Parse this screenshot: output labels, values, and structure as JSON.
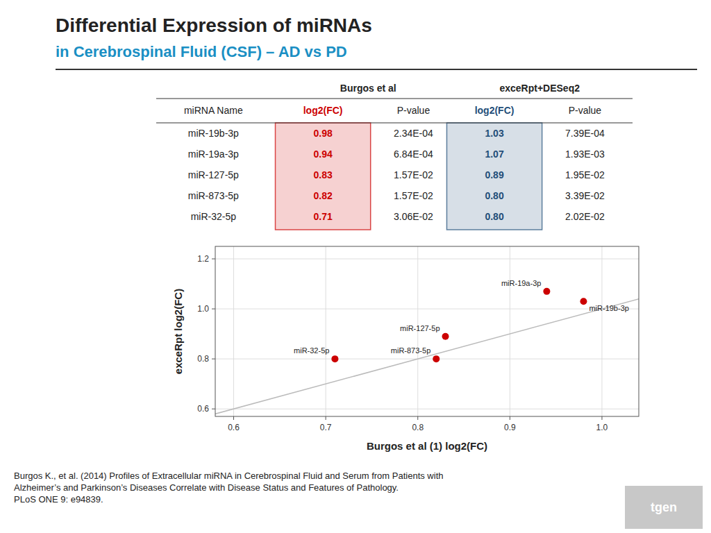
{
  "chart_data": [
    {
      "type": "table",
      "category_label": "miRNA Name",
      "categories": [
        "miR-19b-3p",
        "miR-19a-3p",
        "miR-127-5p",
        "miR-873-5p",
        "miR-32-5p"
      ],
      "series": [
        {
          "name": "log2(FC)",
          "group": "Burgos et al",
          "color": "#CC0000",
          "values": [
            0.98,
            0.94,
            0.83,
            0.82,
            0.71
          ]
        },
        {
          "name": "P-value",
          "group": "Burgos et al",
          "values": [
            0.000234,
            0.000684,
            0.0157,
            0.0157,
            0.0306
          ],
          "value_labels": [
            "2.34E-04",
            "6.84E-04",
            "1.57E-02",
            "1.57E-02",
            "3.06E-02"
          ]
        },
        {
          "name": "log2(FC)",
          "group": "exceRpt+DESeq2",
          "color": "#1F4E79",
          "values": [
            1.03,
            1.07,
            0.89,
            0.8,
            0.8
          ],
          "value_labels": [
            "1.03",
            "1.07",
            "0.89",
            "0.80",
            "0.80"
          ]
        },
        {
          "name": "P-value",
          "group": "exceRpt+DESeq2",
          "values": [
            0.000739,
            0.00193,
            0.0195,
            0.0339,
            0.0202
          ],
          "value_labels": [
            "7.39E-04",
            "1.93E-03",
            "1.95E-02",
            "3.39E-02",
            "2.02E-02"
          ]
        }
      ]
    },
    {
      "type": "scatter",
      "title": "Differential Expression of miRNAs",
      "subtitle": "in Cerebrospinal Fluid (CSF) – AD vs PD",
      "x": [
        0.98,
        0.94,
        0.83,
        0.82,
        0.71
      ],
      "values": [
        1.03,
        1.07,
        0.89,
        0.8,
        0.8
      ],
      "labels": [
        "miR-19b-3p",
        "miR-19a-3p",
        "miR-127-5p",
        "miR-873-5p",
        "miR-32-5p"
      ],
      "color": "#CC0000",
      "xlabel": "Burgos et al (1) log2(FC)",
      "ylabel": "exceRpt log2(FC)",
      "xlim": [
        0.58,
        1.04
      ],
      "ylim": [
        0.57,
        1.25
      ],
      "xticks": [
        0.6,
        0.7,
        0.8,
        0.9,
        {
          "value": 1.0,
          "label": "1.0"
        }
      ],
      "yticks": [
        0.6,
        0.8,
        {
          "value": 1.0,
          "label": "1.0"
        },
        1.2
      ],
      "grid": true,
      "annotations": [
        "Burgos K., et al.  (2014) Profiles of Extracellular miRNA in Cerebrospinal Fluid and Serum from Patients with\nAlzheimer’s and Parkinson’s Diseases Correlate with Disease Status and Features of Pathology.\nPLoS ONE 9: e94839.",
        "tgen"
      ]
    }
  ]
}
